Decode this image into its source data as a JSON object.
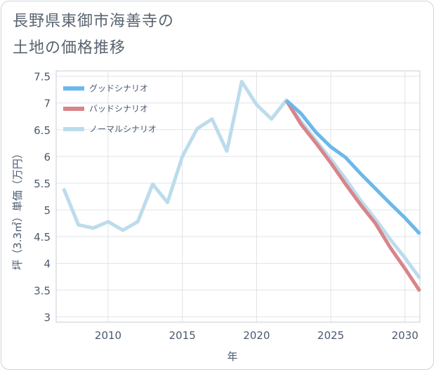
{
  "title_lines": [
    "長野県東御市海善寺の",
    "土地の価格推移"
  ],
  "chart_data": {
    "type": "line",
    "title": "長野県東御市海善寺の土地の価格推移",
    "xlabel": "年",
    "ylabel": "坪（3.3㎡）単価（万円）",
    "xlim": [
      2006.5,
      2031
    ],
    "ylim": [
      2.9,
      7.6
    ],
    "x_ticks": [
      2010,
      2015,
      2020,
      2025,
      2030
    ],
    "y_ticks": [
      3,
      3.5,
      4,
      4.5,
      5,
      5.5,
      6,
      6.5,
      7,
      7.5
    ],
    "y_tick_labels": [
      "3",
      "3.5",
      "4",
      "4.5",
      "5",
      "5.5",
      "6",
      "6.5",
      "7",
      "7.5"
    ],
    "grid": true,
    "legend_position": "top-left",
    "series": [
      {
        "name": "グッドシナリオ",
        "color": "#6bb8ea",
        "x": [
          2022,
          2023,
          2024,
          2025,
          2026,
          2027,
          2028,
          2029,
          2030,
          2031
        ],
        "values": [
          7.05,
          6.8,
          6.45,
          6.18,
          5.98,
          5.68,
          5.4,
          5.12,
          4.85,
          4.55
        ]
      },
      {
        "name": "バッドシナリオ",
        "color": "#d9848a",
        "x": [
          2022,
          2023,
          2024,
          2025,
          2026,
          2027,
          2028,
          2029,
          2030,
          2031
        ],
        "values": [
          7.05,
          6.6,
          6.25,
          5.88,
          5.48,
          5.1,
          4.75,
          4.3,
          3.9,
          3.48
        ]
      },
      {
        "name": "ノーマルシナリオ",
        "color": "#bcdcec",
        "x": [
          2007,
          2008,
          2009,
          2010,
          2011,
          2012,
          2013,
          2014,
          2015,
          2016,
          2017,
          2018,
          2019,
          2020,
          2021,
          2022,
          2023,
          2024,
          2025,
          2026,
          2027,
          2028,
          2029,
          2030,
          2031
        ],
        "values": [
          5.4,
          4.72,
          4.66,
          4.78,
          4.62,
          4.78,
          5.48,
          5.14,
          6.0,
          6.52,
          6.7,
          6.1,
          7.4,
          6.97,
          6.7,
          7.05,
          6.65,
          6.3,
          5.95,
          5.58,
          5.18,
          4.83,
          4.45,
          4.1,
          3.72
        ]
      }
    ]
  }
}
